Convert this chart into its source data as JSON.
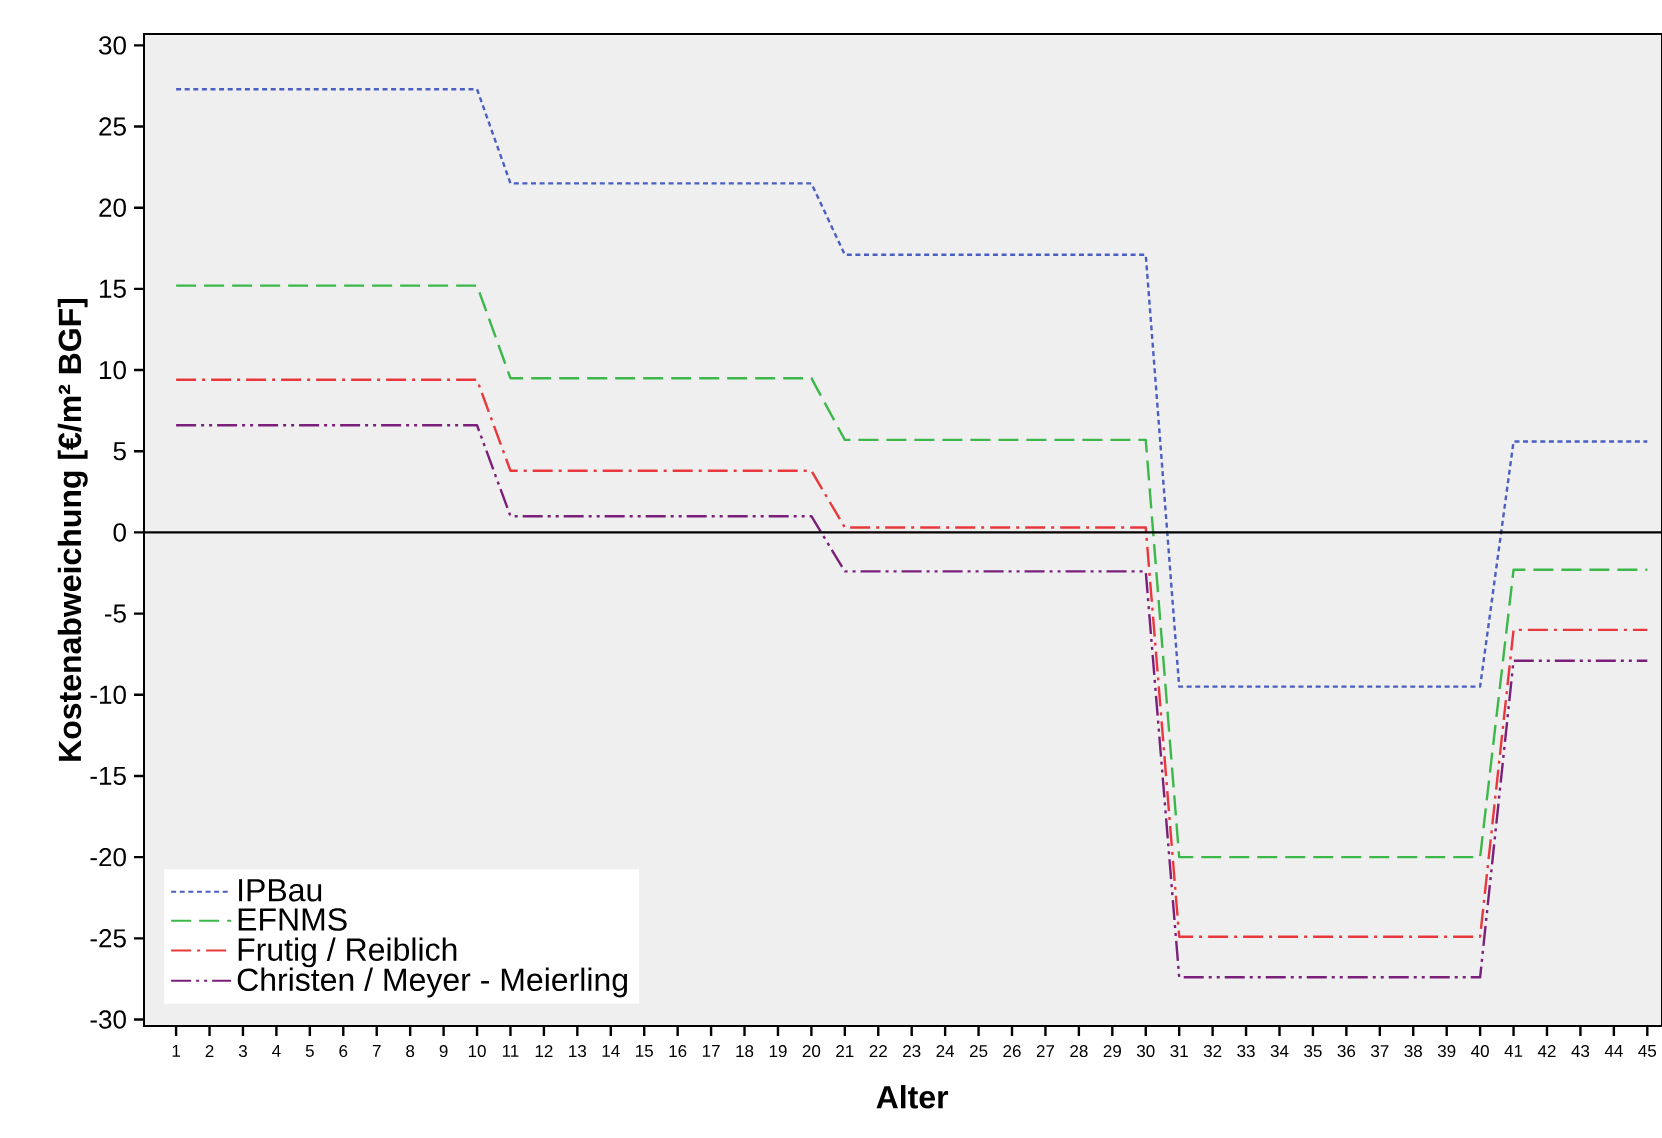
{
  "chart_data": {
    "type": "line",
    "xlabel": "Alter",
    "ylabel": "Kostenabweichung [€/m² BGF]",
    "categories": [
      "1",
      "2",
      "3",
      "4",
      "5",
      "6",
      "7",
      "8",
      "9",
      "10",
      "11",
      "12",
      "13",
      "14",
      "15",
      "16",
      "17",
      "18",
      "19",
      "20",
      "21",
      "22",
      "23",
      "24",
      "25",
      "26",
      "27",
      "28",
      "29",
      "30",
      "31",
      "32",
      "33",
      "34",
      "35",
      "36",
      "37",
      "38",
      "39",
      "40",
      "41",
      "42",
      "43",
      "44",
      "45"
    ],
    "ylim": [
      -30.4,
      30.7
    ],
    "yticks": [
      -30,
      -25,
      -20,
      -15,
      -10,
      -5,
      0,
      5,
      10,
      15,
      20,
      25,
      30
    ],
    "legend": "bottom left",
    "ref_lines": [
      {
        "axis": "y",
        "value": 0,
        "color": "#000000",
        "line_style": "solid"
      }
    ],
    "series": [
      {
        "name": "IPBau",
        "color": "#4a5fc1",
        "line_style": "dotted",
        "values": [
          27.3,
          27.3,
          27.3,
          27.3,
          27.3,
          27.3,
          27.3,
          27.3,
          27.3,
          27.3,
          21.5,
          21.5,
          21.5,
          21.5,
          21.5,
          21.5,
          21.5,
          21.5,
          21.5,
          21.5,
          17.1,
          17.1,
          17.1,
          17.1,
          17.1,
          17.1,
          17.1,
          17.1,
          17.1,
          17.1,
          -9.5,
          -9.5,
          -9.5,
          -9.5,
          -9.5,
          -9.5,
          -9.5,
          -9.5,
          -9.5,
          -9.5,
          5.6,
          5.6,
          5.6,
          5.6,
          5.6
        ]
      },
      {
        "name": "EFNMS",
        "color": "#3cb84a",
        "line_style": "dashed",
        "values": [
          15.2,
          15.2,
          15.2,
          15.2,
          15.2,
          15.2,
          15.2,
          15.2,
          15.2,
          15.2,
          9.5,
          9.5,
          9.5,
          9.5,
          9.5,
          9.5,
          9.5,
          9.5,
          9.5,
          9.5,
          5.7,
          5.7,
          5.7,
          5.7,
          5.7,
          5.7,
          5.7,
          5.7,
          5.7,
          5.7,
          -20,
          -20,
          -20,
          -20,
          -20,
          -20,
          -20,
          -20,
          -20,
          -20,
          -2.3,
          -2.3,
          -2.3,
          -2.3,
          -2.3
        ]
      },
      {
        "name": "Frutig / Reiblich",
        "color": "#e8383d",
        "line_style": "dashdot",
        "values": [
          9.4,
          9.4,
          9.4,
          9.4,
          9.4,
          9.4,
          9.4,
          9.4,
          9.4,
          9.4,
          3.8,
          3.8,
          3.8,
          3.8,
          3.8,
          3.8,
          3.8,
          3.8,
          3.8,
          3.8,
          0.3,
          0.3,
          0.3,
          0.3,
          0.3,
          0.3,
          0.3,
          0.3,
          0.3,
          0.3,
          -24.9,
          -24.9,
          -24.9,
          -24.9,
          -24.9,
          -24.9,
          -24.9,
          -24.9,
          -24.9,
          -24.9,
          -6.0,
          -6.0,
          -6.0,
          -6.0,
          -6.0
        ]
      },
      {
        "name": "Christen / Meyer - Meierling",
        "color": "#7a1f7a",
        "line_style": "dashdotdot",
        "values": [
          6.6,
          6.6,
          6.6,
          6.6,
          6.6,
          6.6,
          6.6,
          6.6,
          6.6,
          6.6,
          1.0,
          1.0,
          1.0,
          1.0,
          1.0,
          1.0,
          1.0,
          1.0,
          1.0,
          1.0,
          -2.4,
          -2.4,
          -2.4,
          -2.4,
          -2.4,
          -2.4,
          -2.4,
          -2.4,
          -2.4,
          -2.4,
          -27.4,
          -27.4,
          -27.4,
          -27.4,
          -27.4,
          -27.4,
          -27.4,
          -27.4,
          -27.4,
          -27.4,
          -7.9,
          -7.9,
          -7.9,
          -7.9,
          -7.9
        ]
      }
    ]
  }
}
